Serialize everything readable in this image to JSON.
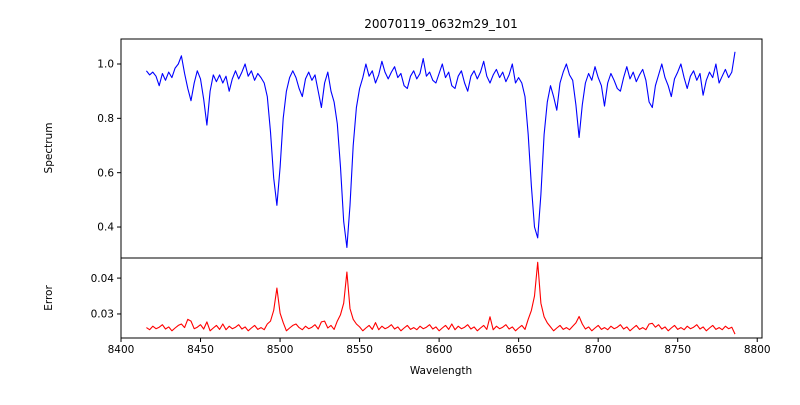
{
  "figure": {
    "background": "#ffffff",
    "spine_color": "#000000"
  },
  "chart_data": {
    "type": "line",
    "title": "20070119_0632m29_101",
    "xlabel": "Wavelength",
    "grid": false,
    "legend": "none",
    "xlim": [
      8400,
      8803
    ],
    "xticks": [
      8400,
      8450,
      8500,
      8550,
      8600,
      8650,
      8700,
      8750,
      8800
    ],
    "xtick_labels": [
      "8400",
      "8450",
      "8500",
      "8550",
      "8600",
      "8650",
      "8700",
      "8750",
      "8800"
    ],
    "x": [
      8416,
      8418,
      8420,
      8422,
      8424,
      8426,
      8428,
      8430,
      8432,
      8434,
      8436,
      8438,
      8440,
      8442,
      8444,
      8446,
      8448,
      8450,
      8452,
      8454,
      8456,
      8458,
      8460,
      8462,
      8464,
      8466,
      8468,
      8470,
      8472,
      8474,
      8476,
      8478,
      8480,
      8482,
      8484,
      8486,
      8488,
      8490,
      8492,
      8494,
      8496,
      8498,
      8500,
      8502,
      8504,
      8506,
      8508,
      8510,
      8512,
      8514,
      8516,
      8518,
      8520,
      8522,
      8524,
      8526,
      8528,
      8530,
      8532,
      8534,
      8536,
      8538,
      8540,
      8542,
      8544,
      8546,
      8548,
      8550,
      8552,
      8554,
      8556,
      8558,
      8560,
      8562,
      8564,
      8566,
      8568,
      8570,
      8572,
      8574,
      8576,
      8578,
      8580,
      8582,
      8584,
      8586,
      8588,
      8590,
      8592,
      8594,
      8596,
      8598,
      8600,
      8602,
      8604,
      8606,
      8608,
      8610,
      8612,
      8614,
      8616,
      8618,
      8620,
      8622,
      8624,
      8626,
      8628,
      8630,
      8632,
      8634,
      8636,
      8638,
      8640,
      8642,
      8644,
      8646,
      8648,
      8650,
      8652,
      8654,
      8656,
      8658,
      8660,
      8662,
      8664,
      8666,
      8668,
      8670,
      8672,
      8674,
      8676,
      8678,
      8680,
      8682,
      8684,
      8686,
      8688,
      8690,
      8692,
      8694,
      8696,
      8698,
      8700,
      8702,
      8704,
      8706,
      8708,
      8710,
      8712,
      8714,
      8716,
      8718,
      8720,
      8722,
      8724,
      8726,
      8728,
      8730,
      8732,
      8734,
      8736,
      8738,
      8740,
      8742,
      8744,
      8746,
      8748,
      8750,
      8752,
      8754,
      8756,
      8758,
      8760,
      8762,
      8764,
      8766,
      8768,
      8770,
      8772,
      8774,
      8776,
      8778,
      8780,
      8782,
      8784,
      8786
    ],
    "panels": [
      {
        "name": "spectrum",
        "ylabel": "Spectrum",
        "line_color": "#0000ff",
        "ylim": [
          0.286,
          1.092
        ],
        "yticks": [
          0.4,
          0.6,
          0.8,
          1.0
        ],
        "ytick_labels": [
          "0.4",
          "0.6",
          "0.8",
          "1.0"
        ],
        "absorption_line_centers": [
          8498,
          8542,
          8662,
          8688
        ],
        "values": [
          0.975,
          0.96,
          0.97,
          0.955,
          0.92,
          0.965,
          0.94,
          0.97,
          0.95,
          0.985,
          1.0,
          1.03,
          0.965,
          0.91,
          0.865,
          0.93,
          0.975,
          0.945,
          0.87,
          0.775,
          0.9,
          0.96,
          0.935,
          0.96,
          0.93,
          0.955,
          0.9,
          0.945,
          0.975,
          0.945,
          0.97,
          1.0,
          0.955,
          0.975,
          0.94,
          0.965,
          0.95,
          0.93,
          0.88,
          0.75,
          0.58,
          0.48,
          0.62,
          0.8,
          0.9,
          0.95,
          0.975,
          0.95,
          0.91,
          0.88,
          0.945,
          0.97,
          0.94,
          0.96,
          0.9,
          0.84,
          0.93,
          0.97,
          0.9,
          0.86,
          0.78,
          0.62,
          0.42,
          0.325,
          0.48,
          0.7,
          0.84,
          0.91,
          0.95,
          1.0,
          0.955,
          0.975,
          0.93,
          0.96,
          1.01,
          0.97,
          0.945,
          0.97,
          0.99,
          0.95,
          0.965,
          0.92,
          0.91,
          0.955,
          0.975,
          0.945,
          0.965,
          1.02,
          0.955,
          0.97,
          0.94,
          0.93,
          0.965,
          1.0,
          0.95,
          0.97,
          0.92,
          0.91,
          0.955,
          0.975,
          0.93,
          0.9,
          0.955,
          0.975,
          0.945,
          0.97,
          1.01,
          0.955,
          0.93,
          0.96,
          0.98,
          0.95,
          0.97,
          0.935,
          0.96,
          1.0,
          0.93,
          0.95,
          0.93,
          0.88,
          0.74,
          0.55,
          0.4,
          0.36,
          0.52,
          0.74,
          0.86,
          0.92,
          0.88,
          0.83,
          0.93,
          0.97,
          1.0,
          0.96,
          0.94,
          0.85,
          0.73,
          0.85,
          0.93,
          0.965,
          0.94,
          0.99,
          0.95,
          0.92,
          0.845,
          0.93,
          0.965,
          0.94,
          0.91,
          0.9,
          0.95,
          0.99,
          0.945,
          0.97,
          0.935,
          0.96,
          0.98,
          0.94,
          0.86,
          0.84,
          0.92,
          0.96,
          1.0,
          0.95,
          0.92,
          0.88,
          0.945,
          0.97,
          1.0,
          0.95,
          0.91,
          0.955,
          0.975,
          0.94,
          0.965,
          0.885,
          0.94,
          0.97,
          0.95,
          1.0,
          0.93,
          0.955,
          0.98,
          0.95,
          0.97,
          1.045
        ]
      },
      {
        "name": "error",
        "ylabel": "Error",
        "line_color": "#ff0000",
        "ylim": [
          0.0233,
          0.0456
        ],
        "yticks": [
          0.03,
          0.04
        ],
        "ytick_labels": [
          "0.03",
          "0.04"
        ],
        "peak_centers": [
          8498,
          8542,
          8662,
          8688
        ],
        "values": [
          0.0262,
          0.0256,
          0.0266,
          0.0259,
          0.0263,
          0.027,
          0.0258,
          0.0264,
          0.0253,
          0.0261,
          0.0268,
          0.0272,
          0.0262,
          0.0285,
          0.028,
          0.0259,
          0.0263,
          0.027,
          0.0258,
          0.0278,
          0.0253,
          0.0261,
          0.0268,
          0.0257,
          0.0272,
          0.0256,
          0.0266,
          0.0259,
          0.0263,
          0.027,
          0.0258,
          0.0264,
          0.0253,
          0.0261,
          0.0268,
          0.0257,
          0.0262,
          0.0256,
          0.0272,
          0.028,
          0.031,
          0.0372,
          0.0302,
          0.0276,
          0.0253,
          0.0261,
          0.0268,
          0.0272,
          0.0262,
          0.0256,
          0.0266,
          0.0259,
          0.0263,
          0.027,
          0.0258,
          0.0278,
          0.028,
          0.0261,
          0.0268,
          0.0257,
          0.028,
          0.0298,
          0.033,
          0.0417,
          0.0315,
          0.0285,
          0.0272,
          0.0264,
          0.0253,
          0.0261,
          0.0268,
          0.0257,
          0.0276,
          0.0256,
          0.0266,
          0.0259,
          0.0263,
          0.027,
          0.0258,
          0.0264,
          0.0253,
          0.0261,
          0.0268,
          0.0257,
          0.0262,
          0.0256,
          0.0266,
          0.0259,
          0.0263,
          0.027,
          0.0258,
          0.0264,
          0.0253,
          0.0261,
          0.0268,
          0.0257,
          0.0272,
          0.0256,
          0.0266,
          0.0259,
          0.0263,
          0.027,
          0.0258,
          0.0264,
          0.0253,
          0.0261,
          0.0268,
          0.0257,
          0.0292,
          0.0256,
          0.0266,
          0.0259,
          0.0263,
          0.027,
          0.0258,
          0.0264,
          0.0253,
          0.0261,
          0.0268,
          0.0257,
          0.0285,
          0.031,
          0.035,
          0.0444,
          0.033,
          0.0292,
          0.0275,
          0.0264,
          0.0253,
          0.0261,
          0.0268,
          0.0257,
          0.0262,
          0.0256,
          0.0266,
          0.0275,
          0.0293,
          0.0272,
          0.0258,
          0.0264,
          0.0253,
          0.0261,
          0.0268,
          0.0257,
          0.0262,
          0.0256,
          0.0266,
          0.0259,
          0.0263,
          0.027,
          0.0258,
          0.0264,
          0.0253,
          0.0261,
          0.0268,
          0.0257,
          0.0262,
          0.0256,
          0.0272,
          0.0274,
          0.0263,
          0.027,
          0.0258,
          0.0264,
          0.0253,
          0.0261,
          0.0268,
          0.0257,
          0.0262,
          0.0256,
          0.0266,
          0.0259,
          0.0263,
          0.027,
          0.0258,
          0.0264,
          0.0253,
          0.0261,
          0.0268,
          0.0257,
          0.0262,
          0.0256,
          0.0266,
          0.0259,
          0.0263,
          0.0244
        ]
      }
    ]
  }
}
